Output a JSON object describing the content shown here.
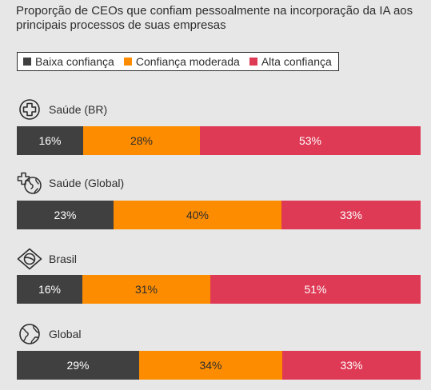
{
  "title": "Proporção de CEOs que confiam pessoalmente na incorporação da IA aos principais processos de suas empresas",
  "legend": [
    {
      "label": "Baixa confiança",
      "color": "#404041"
    },
    {
      "label": "Confiança moderada",
      "color": "#fd8c00"
    },
    {
      "label": "Alta confiança",
      "color": "#df3a55"
    }
  ],
  "chart_data": {
    "type": "bar",
    "orientation": "horizontal-stacked-100",
    "title": "Proporção de CEOs que confiam pessoalmente na incorporação da IA aos principais processos de suas empresas",
    "categories": [
      "Saúde (BR)",
      "Saúde (Global)",
      "Brasil",
      "Global"
    ],
    "category_icons": [
      "health-cross-icon",
      "health-globe-icon",
      "brazil-flag-icon",
      "globe-icon"
    ],
    "series": [
      {
        "name": "Baixa confiança",
        "color": "#404041",
        "values": [
          16,
          23,
          16,
          29
        ],
        "labels": [
          "16%",
          "23%",
          "16%",
          "29%"
        ]
      },
      {
        "name": "Confiança moderada",
        "color": "#fd8c00",
        "values": [
          28,
          40,
          31,
          34
        ],
        "labels": [
          "28%",
          "40%",
          "31%",
          "34%"
        ]
      },
      {
        "name": "Alta confiança",
        "color": "#df3a55",
        "values": [
          53,
          33,
          51,
          33
        ],
        "labels": [
          "53%",
          "33%",
          "51%",
          "33%"
        ]
      }
    ],
    "unit": "%",
    "legend_position": "top-left"
  }
}
